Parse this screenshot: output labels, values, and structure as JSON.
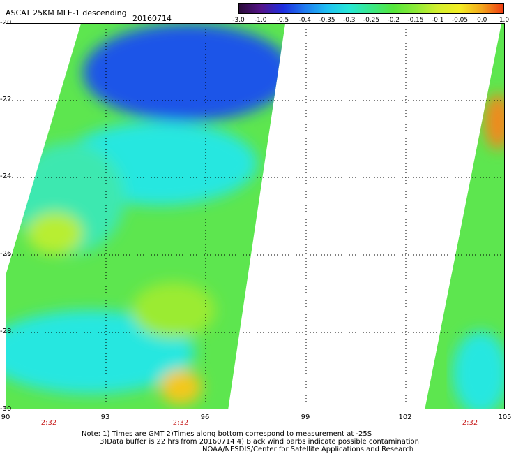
{
  "header": {
    "title": "ASCAT 25KM MLE-1 descending",
    "date": "20160714"
  },
  "colorbar": {
    "ticks": [
      "-3.0",
      "-1.0",
      "-0.5",
      "-0.4",
      "-0.35",
      "-0.3",
      "-0.25",
      "-0.2",
      "-0.15",
      "-0.1",
      "-0.05",
      "0.0",
      "1.0"
    ],
    "colors": [
      "#2a0b38",
      "#55148a",
      "#1e2ee0",
      "#1f7cf0",
      "#20c0f2",
      "#27e7d6",
      "#3ae888",
      "#55e63b",
      "#8cea38",
      "#d3ef2f",
      "#f3ee24",
      "#f3a81c",
      "#ef3b12"
    ]
  },
  "axes": {
    "y_labels": [
      "-20",
      "-22",
      "-24",
      "-26",
      "-28",
      "-30"
    ],
    "x_labels": [
      "90",
      "93",
      "96",
      "99",
      "102",
      "105"
    ],
    "pass_times": [
      "2:32",
      "2:32",
      "2:32"
    ]
  },
  "notes": {
    "line1": "Note: 1) Times are GMT 2)Times along bottom correspond to measurement at -25S",
    "line2": "3)Data buffer is 22 hrs from 20160714 4) Black wind barbs indicate possible contamination",
    "line3": "NOAA/NESDIS/Center for Satellite Applications and Research"
  },
  "swaths": [
    {
      "name": "west-swath",
      "lon_range": [
        90,
        98
      ],
      "lat_range": [
        -20,
        -30
      ]
    },
    {
      "name": "east-swath",
      "lon_range": [
        102.5,
        105
      ],
      "lat_range": [
        -20,
        -30
      ]
    }
  ]
}
